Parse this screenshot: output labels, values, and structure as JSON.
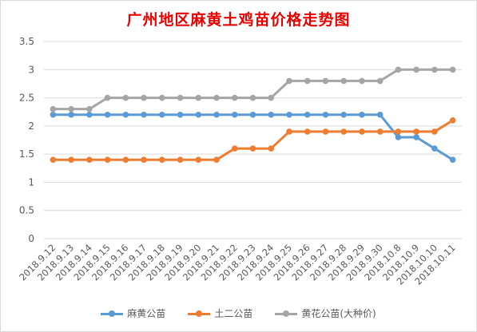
{
  "chart_data": {
    "type": "line",
    "title": "广州地区麻黄土鸡苗价格走势图",
    "xlabel": "",
    "ylabel": "",
    "categories": [
      "2018.9.12",
      "2018.9.13",
      "2018.9.14",
      "2018.9.15",
      "2018.9.16",
      "2018.9.17",
      "2018.9.18",
      "2018.9.19",
      "2018.9.20",
      "2018.9.21",
      "2018.9.22",
      "2018.9.23",
      "2018.9.24",
      "2018.9.25",
      "2018.9.26",
      "2018.9.27",
      "2018.9.28",
      "2018.9.29",
      "2018.9.30",
      "2018.10.8",
      "2018.10.9",
      "2018.10.10",
      "2018.10.11"
    ],
    "ylim": [
      0,
      3.5
    ],
    "yticks": [
      "0",
      "0.5",
      "1",
      "1.5",
      "2",
      "2.5",
      "3",
      "3.5"
    ],
    "grid": true,
    "legend_position": "bottom",
    "series": [
      {
        "name": "麻黄公苗",
        "color": "#5b9bd5",
        "values": [
          2.2,
          2.2,
          2.2,
          2.2,
          2.2,
          2.2,
          2.2,
          2.2,
          2.2,
          2.2,
          2.2,
          2.2,
          2.2,
          2.2,
          2.2,
          2.2,
          2.2,
          2.2,
          2.2,
          1.8,
          1.8,
          1.6,
          1.4
        ]
      },
      {
        "name": "土二公苗",
        "color": "#ed7d31",
        "values": [
          1.4,
          1.4,
          1.4,
          1.4,
          1.4,
          1.4,
          1.4,
          1.4,
          1.4,
          1.4,
          1.6,
          1.6,
          1.6,
          1.9,
          1.9,
          1.9,
          1.9,
          1.9,
          1.9,
          1.9,
          1.9,
          1.9,
          2.1
        ]
      },
      {
        "name": "黄花公苗(大种价)",
        "color": "#a5a5a5",
        "values": [
          2.3,
          2.3,
          2.3,
          2.5,
          2.5,
          2.5,
          2.5,
          2.5,
          2.5,
          2.5,
          2.5,
          2.5,
          2.5,
          2.8,
          2.8,
          2.8,
          2.8,
          2.8,
          2.8,
          3.0,
          3.0,
          3.0,
          3.0
        ]
      }
    ]
  }
}
